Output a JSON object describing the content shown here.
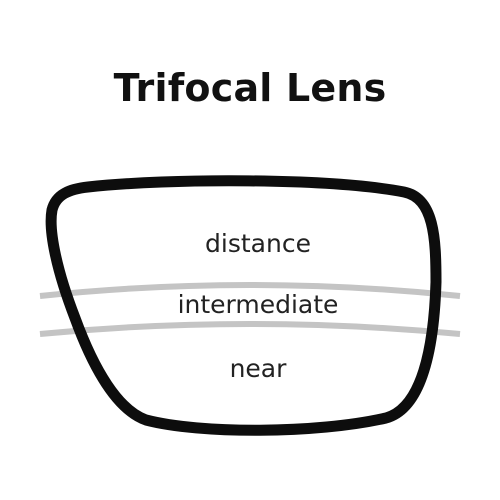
{
  "title": "Trifocal Lens",
  "lens": {
    "zones": [
      {
        "id": "distance",
        "label": "distance"
      },
      {
        "id": "intermediate",
        "label": "intermediate"
      },
      {
        "id": "near",
        "label": "near"
      }
    ]
  },
  "colors": {
    "frame": "#0d0d0d",
    "divider": "#c4c4c4",
    "text": "#222222",
    "background": "#ffffff"
  }
}
